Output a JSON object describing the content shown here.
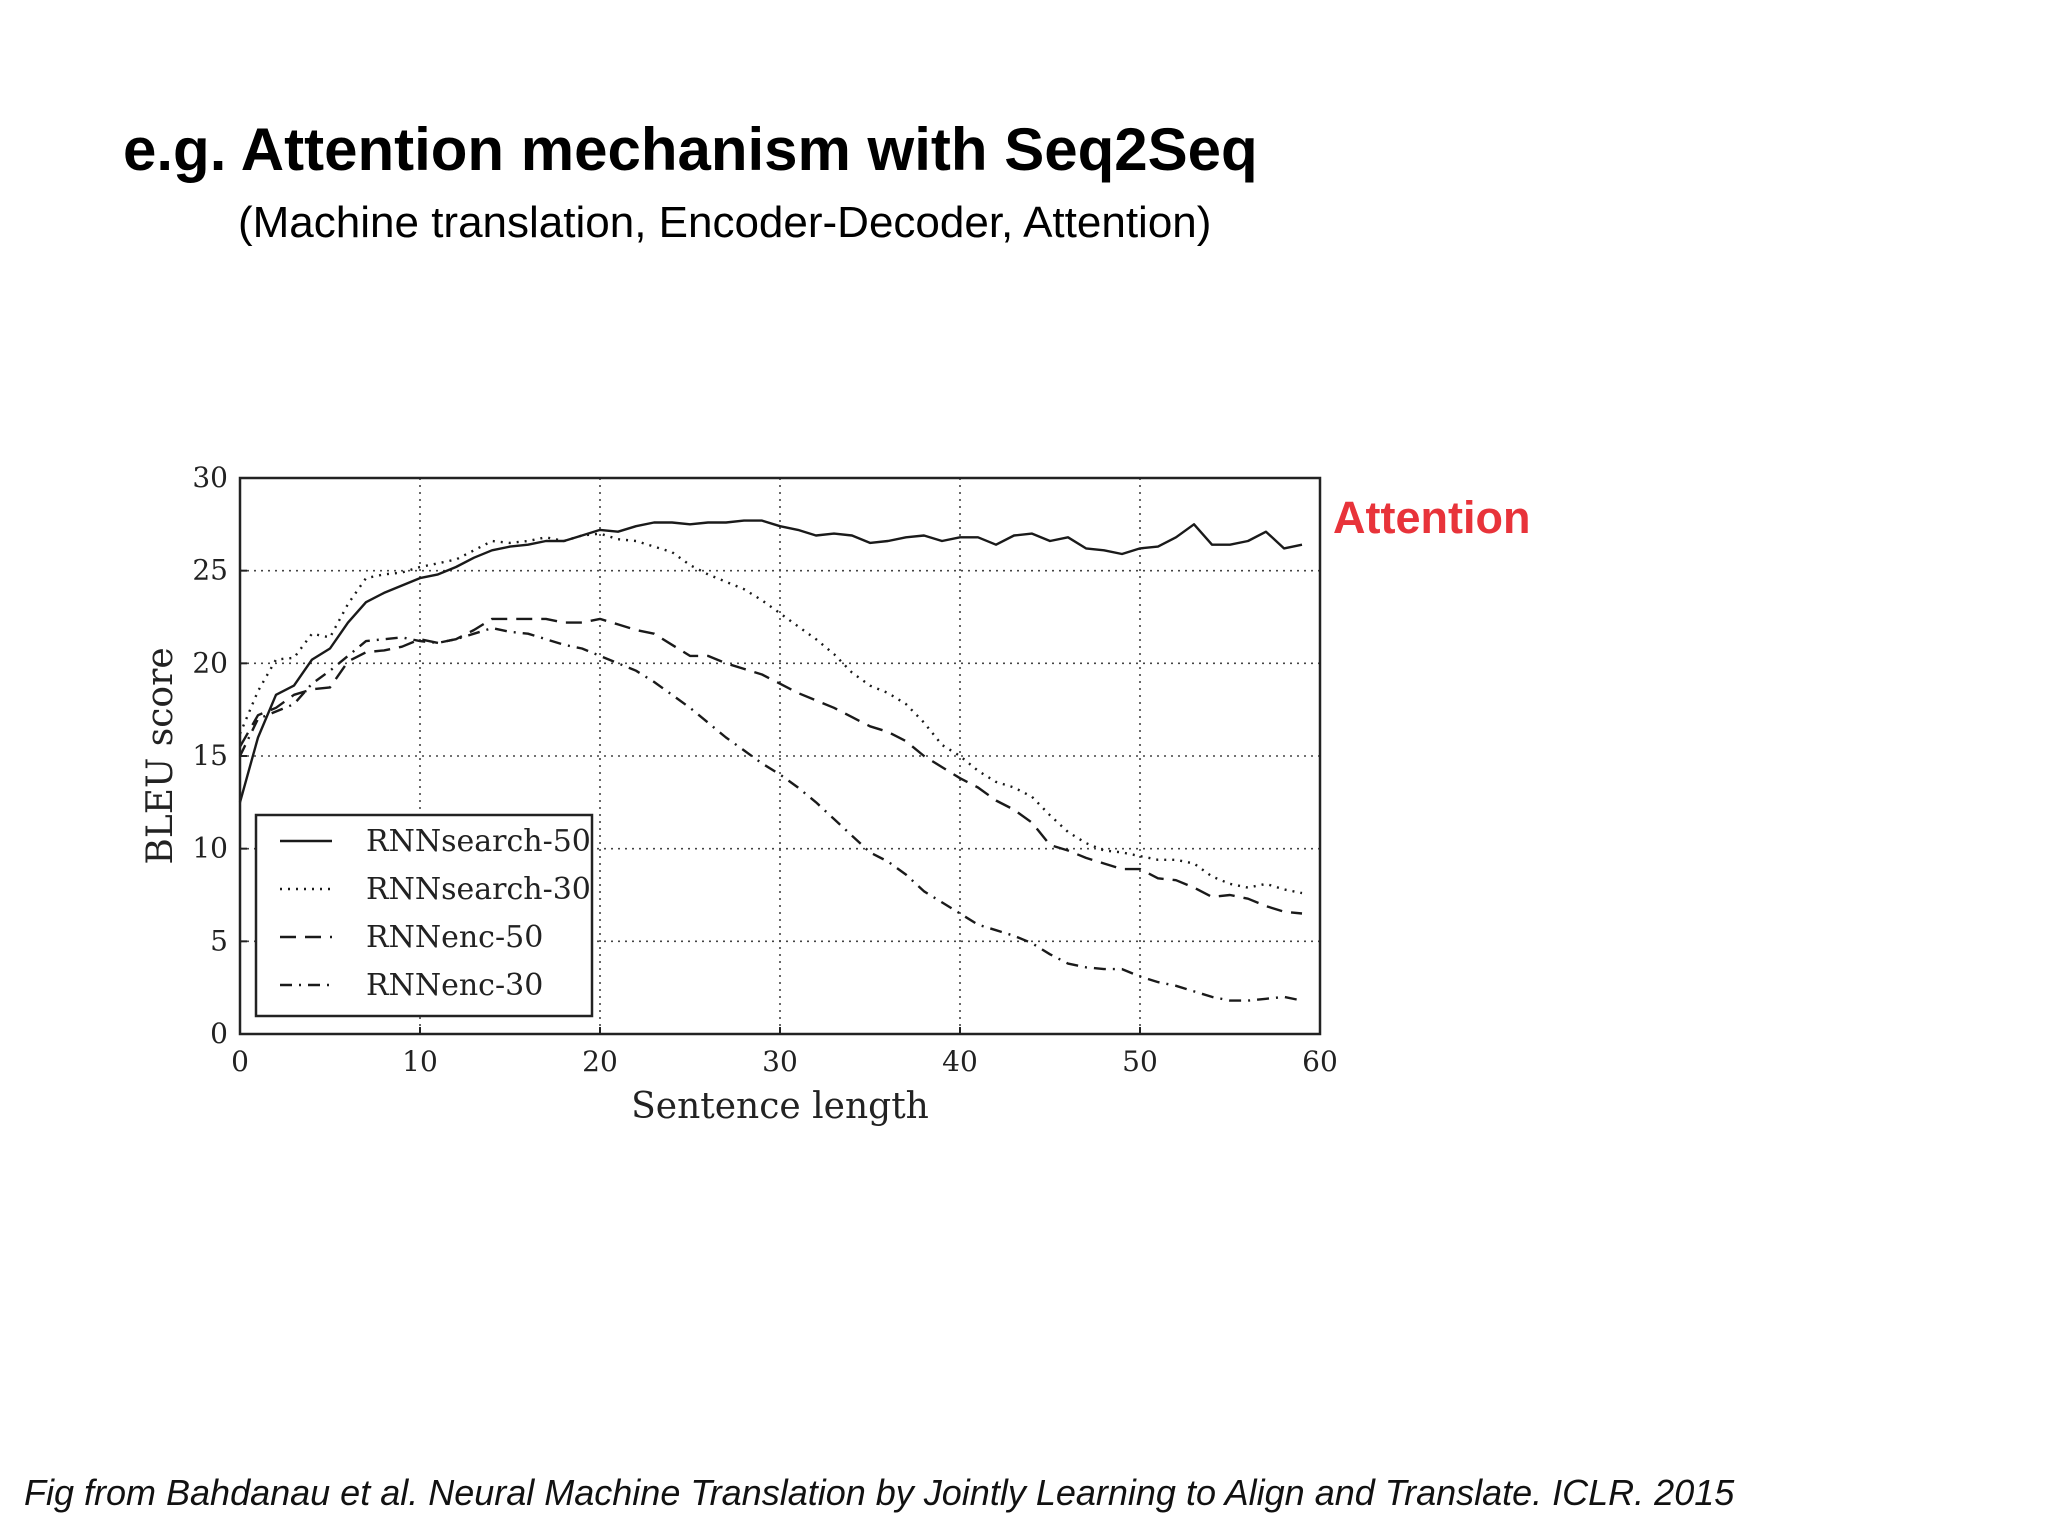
{
  "slide": {
    "title": "e.g. Attention mechanism with Seq2Seq",
    "subtitle": "(Machine translation, Encoder-Decoder, Attention)",
    "annotation": "Attention",
    "annotation_color": "#e8333a",
    "caption": "Fig from Bahdanau et al. Neural Machine Translation by Jointly Learning to Align and Translate. ICLR. 2015"
  },
  "chart_data": {
    "type": "line",
    "xlabel": "Sentence length",
    "ylabel": "BLEU score",
    "xlim": [
      0,
      60
    ],
    "ylim": [
      0,
      30
    ],
    "xticks": [
      0,
      10,
      20,
      30,
      40,
      50,
      60
    ],
    "yticks": [
      0,
      5,
      10,
      15,
      20,
      25,
      30
    ],
    "grid": true,
    "grid_style": "dotted",
    "legend_position": "bottom-left",
    "series": [
      {
        "name": "RNNsearch-50",
        "line_style": "solid",
        "x": [
          0,
          1,
          2,
          3,
          4,
          5,
          6,
          7,
          8,
          9,
          10,
          11,
          12,
          13,
          14,
          15,
          16,
          17,
          18,
          19,
          20,
          21,
          22,
          23,
          24,
          25,
          26,
          27,
          28,
          29,
          30,
          31,
          32,
          33,
          34,
          35,
          36,
          37,
          38,
          39,
          40,
          41,
          42,
          43,
          44,
          45,
          46,
          47,
          48,
          49,
          50,
          51,
          52,
          53,
          54,
          55,
          56,
          57,
          58,
          59
        ],
        "y": [
          12.5,
          16.0,
          18.3,
          18.8,
          20.2,
          20.8,
          22.2,
          23.3,
          23.8,
          24.2,
          24.6,
          24.8,
          25.2,
          25.7,
          26.1,
          26.3,
          26.4,
          26.6,
          26.6,
          26.9,
          27.2,
          27.1,
          27.4,
          27.6,
          27.6,
          27.5,
          27.6,
          27.6,
          27.7,
          27.7,
          27.4,
          27.2,
          26.9,
          27.0,
          26.9,
          26.5,
          26.6,
          26.8,
          26.9,
          26.6,
          26.8,
          26.8,
          26.4,
          26.9,
          27.0,
          26.6,
          26.8,
          26.2,
          26.1,
          25.9,
          26.2,
          26.3,
          26.8,
          27.5,
          26.4,
          26.4,
          26.6,
          27.1,
          26.2,
          26.4
        ]
      },
      {
        "name": "RNNsearch-30",
        "line_style": "dotted",
        "x": [
          0,
          1,
          2,
          3,
          4,
          5,
          6,
          7,
          8,
          9,
          10,
          11,
          12,
          13,
          14,
          15,
          16,
          17,
          18,
          19,
          20,
          21,
          22,
          23,
          24,
          25,
          26,
          27,
          28,
          29,
          30,
          31,
          32,
          33,
          34,
          35,
          36,
          37,
          38,
          39,
          40,
          41,
          42,
          43,
          44,
          45,
          46,
          47,
          48,
          49,
          50,
          51,
          52,
          53,
          54,
          55,
          56,
          57,
          58,
          59
        ],
        "y": [
          16.2,
          18.5,
          20.2,
          20.3,
          21.6,
          21.4,
          23.2,
          24.6,
          24.8,
          24.9,
          25.2,
          25.4,
          25.6,
          26.1,
          26.6,
          26.5,
          26.6,
          26.8,
          26.6,
          26.9,
          27.0,
          26.7,
          26.6,
          26.3,
          26.0,
          25.3,
          24.8,
          24.4,
          24.0,
          23.4,
          22.7,
          22.0,
          21.3,
          20.5,
          19.5,
          18.8,
          18.4,
          17.8,
          16.8,
          15.6,
          15.0,
          14.2,
          13.6,
          13.3,
          12.8,
          11.8,
          10.9,
          10.3,
          9.9,
          9.8,
          9.6,
          9.4,
          9.4,
          9.2,
          8.5,
          8.1,
          7.9,
          8.1,
          7.8,
          7.6
        ]
      },
      {
        "name": "RNNenc-50",
        "line_style": "dashed",
        "x": [
          0,
          1,
          2,
          3,
          4,
          5,
          6,
          7,
          8,
          9,
          10,
          11,
          12,
          13,
          14,
          15,
          16,
          17,
          18,
          19,
          20,
          21,
          22,
          23,
          24,
          25,
          26,
          27,
          28,
          29,
          30,
          31,
          32,
          33,
          34,
          35,
          36,
          37,
          38,
          39,
          40,
          41,
          42,
          43,
          44,
          45,
          46,
          47,
          48,
          49,
          50,
          51,
          52,
          53,
          54,
          55,
          56,
          57,
          58,
          59
        ],
        "y": [
          15.5,
          17.2,
          17.6,
          18.3,
          18.6,
          18.7,
          20.1,
          20.6,
          20.7,
          20.9,
          21.3,
          21.1,
          21.3,
          21.8,
          22.4,
          22.4,
          22.4,
          22.4,
          22.2,
          22.2,
          22.4,
          22.1,
          21.8,
          21.6,
          21.0,
          20.4,
          20.4,
          20.0,
          19.7,
          19.4,
          18.9,
          18.4,
          18.0,
          17.6,
          17.1,
          16.6,
          16.3,
          15.8,
          15.0,
          14.4,
          13.8,
          13.3,
          12.6,
          12.1,
          11.4,
          10.2,
          9.9,
          9.5,
          9.2,
          8.9,
          8.9,
          8.4,
          8.3,
          7.9,
          7.4,
          7.5,
          7.3,
          6.9,
          6.6,
          6.5
        ]
      },
      {
        "name": "RNNenc-30",
        "line_style": "dashdot",
        "x": [
          0,
          1,
          2,
          3,
          4,
          5,
          6,
          7,
          8,
          9,
          10,
          11,
          12,
          13,
          14,
          15,
          16,
          17,
          18,
          19,
          20,
          21,
          22,
          23,
          24,
          25,
          26,
          27,
          28,
          29,
          30,
          31,
          32,
          33,
          34,
          35,
          36,
          37,
          38,
          39,
          40,
          41,
          42,
          43,
          44,
          45,
          46,
          47,
          48,
          49,
          50,
          51,
          52,
          53,
          54,
          55,
          56,
          57,
          58,
          59
        ],
        "y": [
          15.0,
          17.0,
          17.4,
          17.8,
          18.9,
          19.6,
          20.4,
          21.2,
          21.3,
          21.4,
          21.2,
          21.1,
          21.3,
          21.6,
          21.9,
          21.7,
          21.6,
          21.3,
          21.0,
          20.8,
          20.4,
          20.0,
          19.6,
          19.0,
          18.3,
          17.6,
          16.8,
          16.0,
          15.3,
          14.6,
          14.0,
          13.3,
          12.5,
          11.6,
          10.7,
          9.8,
          9.3,
          8.6,
          7.7,
          7.1,
          6.5,
          5.9,
          5.6,
          5.3,
          4.9,
          4.3,
          3.8,
          3.6,
          3.5,
          3.5,
          3.1,
          2.8,
          2.6,
          2.3,
          2.0,
          1.8,
          1.8,
          1.9,
          2.0,
          1.8
        ]
      }
    ]
  }
}
